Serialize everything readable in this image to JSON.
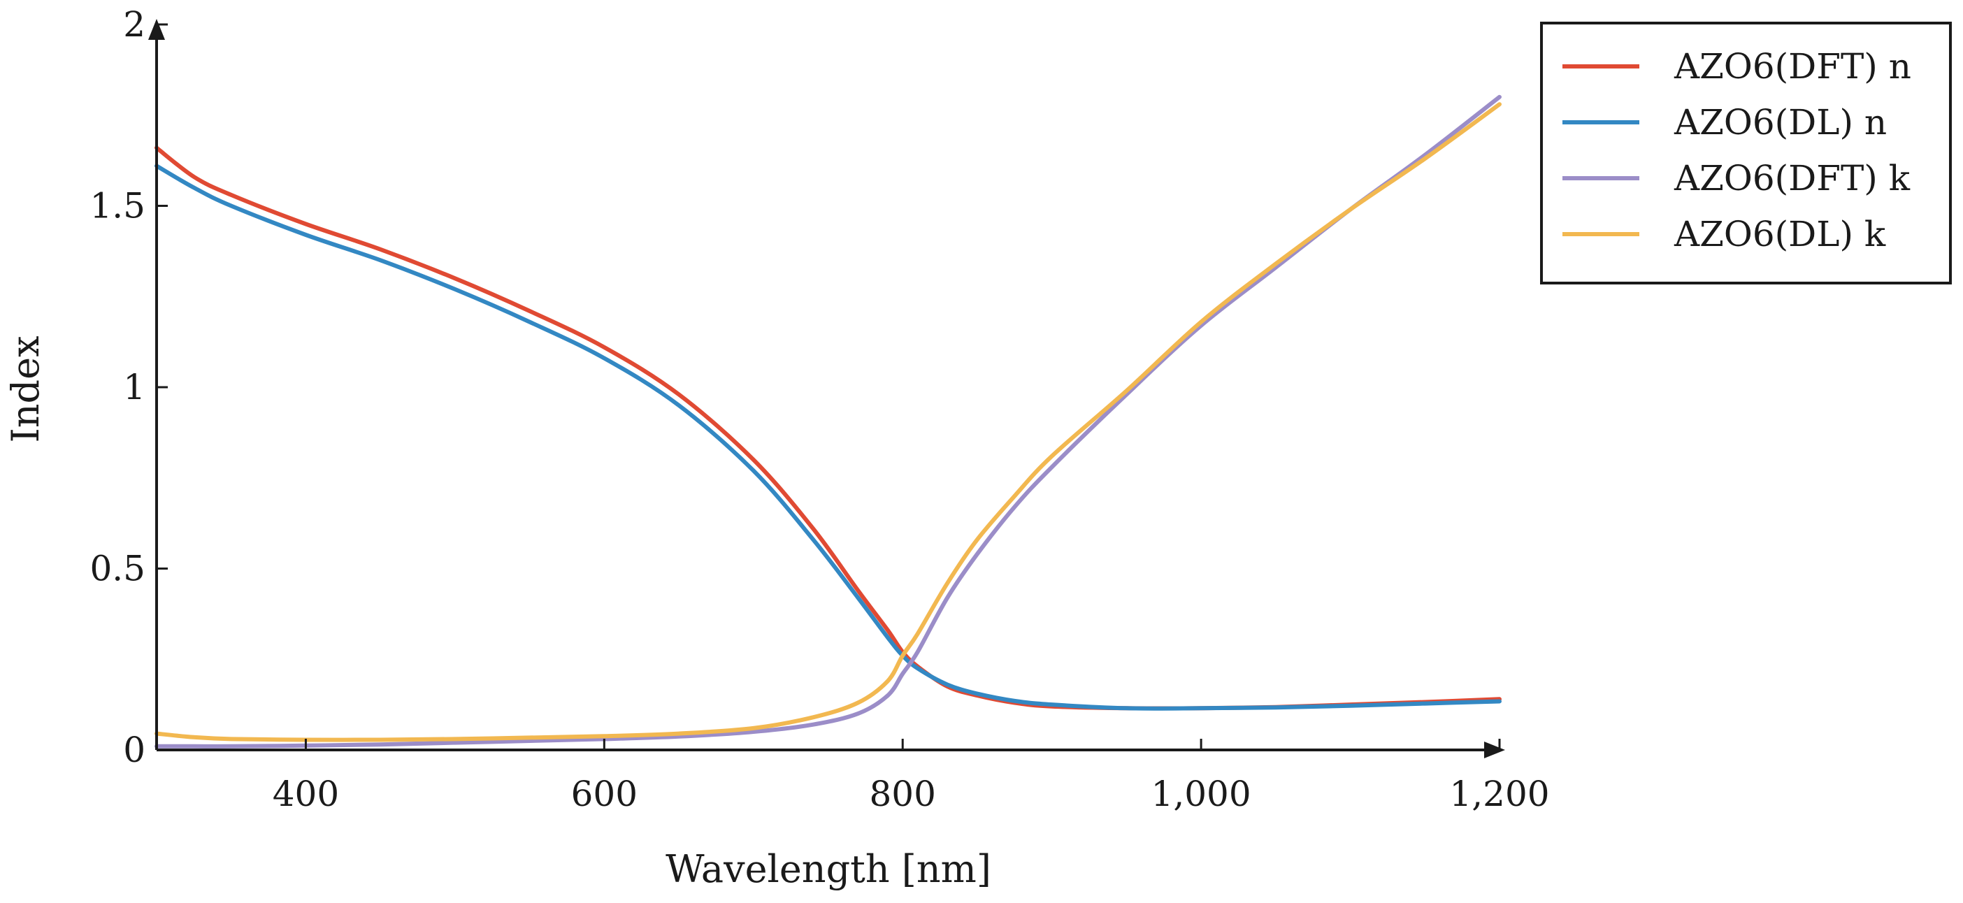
{
  "chart_data": {
    "type": "line",
    "title": "",
    "xlabel": "Wavelength [nm]",
    "ylabel": "Index",
    "xlim": [
      300,
      1200
    ],
    "ylim": [
      0,
      2
    ],
    "xticks": [
      400,
      600,
      800,
      1000,
      1200
    ],
    "xtick_labels": [
      "400",
      "600",
      "800",
      "1,000",
      "1,200"
    ],
    "yticks": [
      0,
      0.5,
      1,
      1.5,
      2
    ],
    "ytick_labels": [
      "0",
      "0.5",
      "1",
      "1.5",
      "2"
    ],
    "grid": false,
    "legend_position": "outside-top-right",
    "x": [
      300,
      325,
      350,
      400,
      450,
      500,
      550,
      600,
      650,
      700,
      740,
      770,
      790,
      800,
      810,
      830,
      850,
      875,
      900,
      950,
      1000,
      1050,
      1100,
      1150,
      1200
    ],
    "series": [
      {
        "name": "AZO6(DFT) n",
        "color": "#e04a33",
        "values": [
          1.66,
          1.58,
          1.53,
          1.45,
          1.38,
          1.3,
          1.21,
          1.11,
          0.98,
          0.8,
          0.61,
          0.44,
          0.33,
          0.27,
          0.23,
          0.175,
          0.15,
          0.13,
          0.12,
          0.115,
          0.115,
          0.118,
          0.125,
          0.132,
          0.14
        ]
      },
      {
        "name": "AZO6(DL) n",
        "color": "#3388c3",
        "values": [
          1.61,
          1.55,
          1.5,
          1.42,
          1.35,
          1.27,
          1.18,
          1.08,
          0.95,
          0.77,
          0.58,
          0.42,
          0.31,
          0.26,
          0.225,
          0.18,
          0.155,
          0.135,
          0.125,
          0.115,
          0.115,
          0.117,
          0.122,
          0.128,
          0.134
        ]
      },
      {
        "name": "AZO6(DFT) k",
        "color": "#9b8dc8",
        "values": [
          0.01,
          0.01,
          0.01,
          0.012,
          0.015,
          0.02,
          0.025,
          0.03,
          0.037,
          0.05,
          0.07,
          0.1,
          0.15,
          0.21,
          0.27,
          0.42,
          0.54,
          0.67,
          0.78,
          0.98,
          1.17,
          1.33,
          1.49,
          1.64,
          1.8
        ]
      },
      {
        "name": "AZO6(DL) k",
        "color": "#f2b850",
        "values": [
          0.045,
          0.035,
          0.03,
          0.028,
          0.028,
          0.03,
          0.034,
          0.038,
          0.045,
          0.06,
          0.09,
          0.13,
          0.19,
          0.26,
          0.32,
          0.46,
          0.58,
          0.7,
          0.81,
          0.99,
          1.18,
          1.34,
          1.49,
          1.63,
          1.78
        ]
      }
    ]
  }
}
